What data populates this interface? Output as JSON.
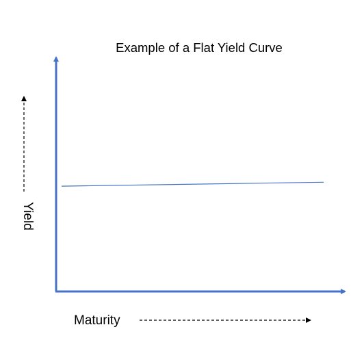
{
  "chart_data": {
    "type": "line",
    "title": "Example of a Flat Yield Curve",
    "xlabel": "Maturity",
    "ylabel": "Yield",
    "ticks_shown": false,
    "grid": false,
    "series": [
      {
        "x": [
          0,
          1
        ],
        "y": [
          0.45,
          0.467
        ]
      }
    ],
    "xlim": [
      0,
      1
    ],
    "ylim": [
      0,
      1
    ],
    "colors": {
      "axis": "#4472C4",
      "line": "#4472C4",
      "text": "#000000",
      "dashed_arrow": "#000000"
    }
  }
}
